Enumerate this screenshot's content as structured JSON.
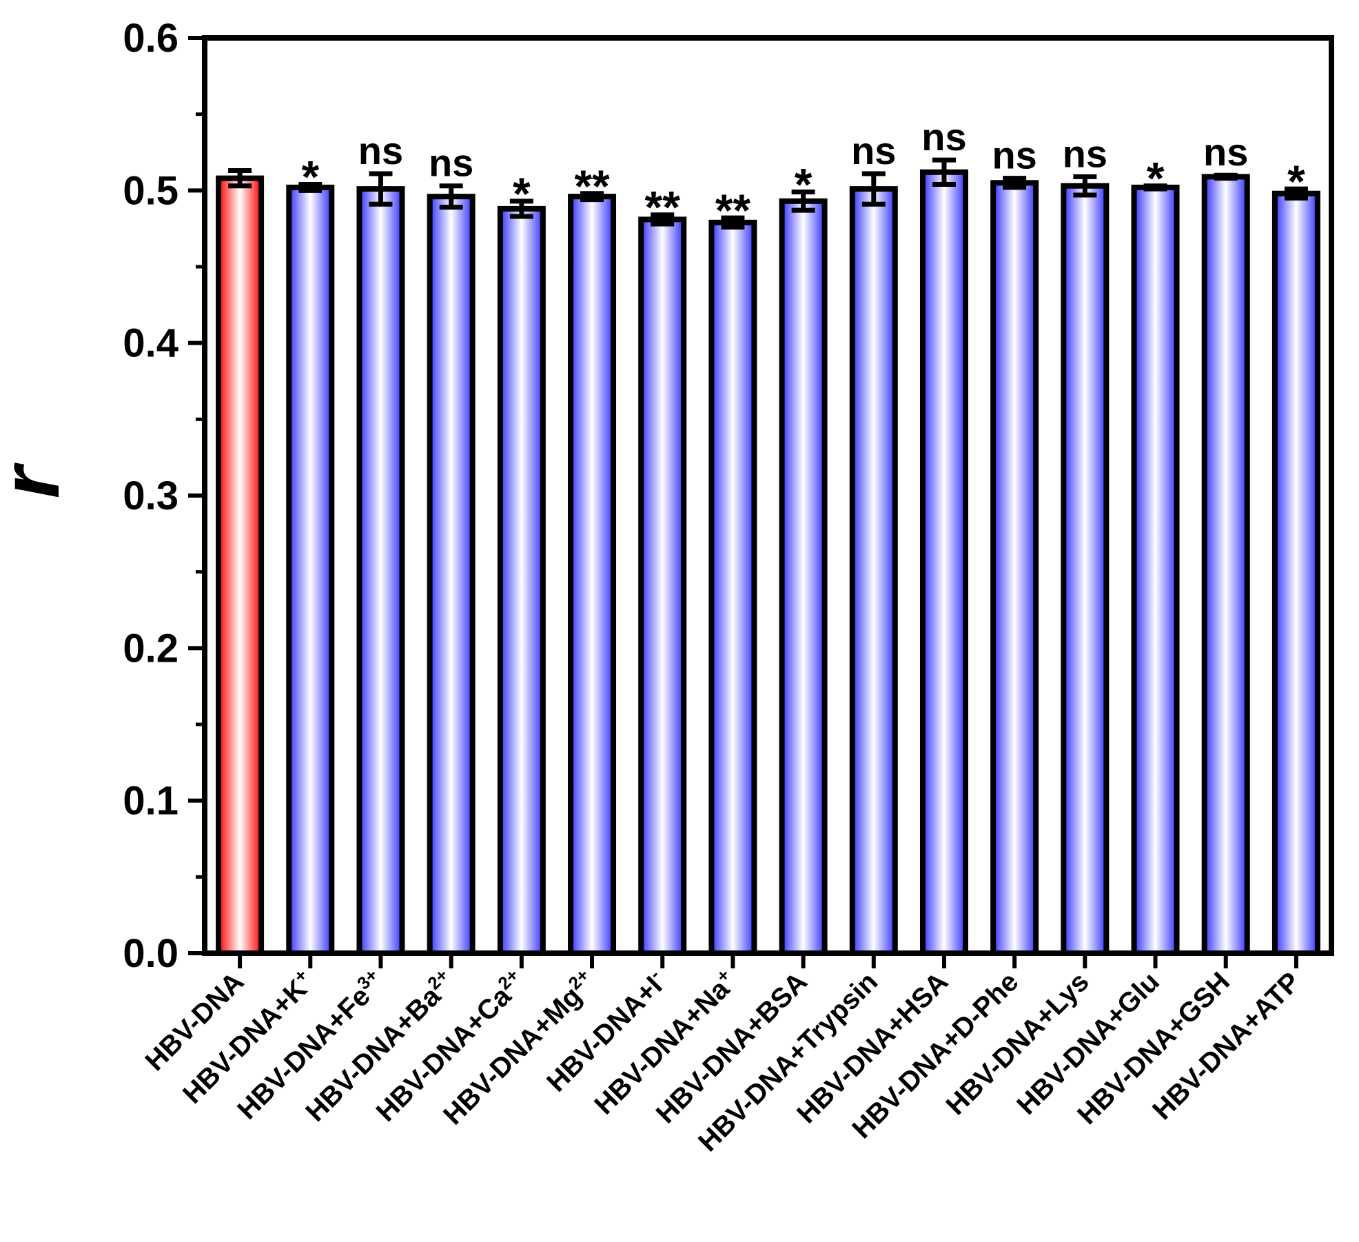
{
  "chart_data": {
    "type": "bar",
    "ylabel": "r",
    "ylim": [
      0,
      0.6
    ],
    "yticks": [
      "0.0",
      "0.1",
      "0.2",
      "0.3",
      "0.4",
      "0.5",
      "0.6"
    ],
    "ytick_values": [
      0,
      0.1,
      0.2,
      0.3,
      0.4,
      0.5,
      0.6
    ],
    "grid": false,
    "legend": "none",
    "categories": [
      {
        "base": "HBV-DNA",
        "sup": ""
      },
      {
        "base": "HBV-DNA+K",
        "sup": "+"
      },
      {
        "base": "HBV-DNA+Fe",
        "sup": "3+"
      },
      {
        "base": "HBV-DNA+Ba",
        "sup": "2+"
      },
      {
        "base": "HBV-DNA+Ca",
        "sup": "2+"
      },
      {
        "base": "HBV-DNA+Mg",
        "sup": "2+"
      },
      {
        "base": "HBV-DNA+I",
        "sup": "-"
      },
      {
        "base": "HBV-DNA+Na",
        "sup": "+"
      },
      {
        "base": "HBV-DNA+BSA",
        "sup": ""
      },
      {
        "base": "HBV-DNA+Trypsin",
        "sup": ""
      },
      {
        "base": "HBV-DNA+HSA",
        "sup": ""
      },
      {
        "base": "HBV-DNA+D-Phe",
        "sup": ""
      },
      {
        "base": "HBV-DNA+Lys",
        "sup": ""
      },
      {
        "base": "HBV-DNA+Glu",
        "sup": ""
      },
      {
        "base": "HBV-DNA+GSH",
        "sup": ""
      },
      {
        "base": "HBV-DNA+ATP",
        "sup": ""
      }
    ],
    "values": [
      0.508,
      0.502,
      0.501,
      0.496,
      0.488,
      0.496,
      0.481,
      0.479,
      0.493,
      0.501,
      0.512,
      0.505,
      0.503,
      0.502,
      0.509,
      0.498
    ],
    "errors": [
      0.005,
      0.002,
      0.01,
      0.007,
      0.005,
      0.002,
      0.003,
      0.003,
      0.006,
      0.01,
      0.008,
      0.003,
      0.006,
      0.001,
      0.001,
      0.003
    ],
    "significance": [
      "",
      "*",
      "ns",
      "ns",
      "*",
      "**",
      "**",
      "**",
      "*",
      "ns",
      "ns",
      "ns",
      "ns",
      "*",
      "ns",
      "*"
    ],
    "colors": {
      "control_edge": "#ff0000",
      "control_center": "#ffffff",
      "sample_edge": "#3333ff",
      "sample_center": "#ffffff",
      "outline": "#000000"
    }
  }
}
